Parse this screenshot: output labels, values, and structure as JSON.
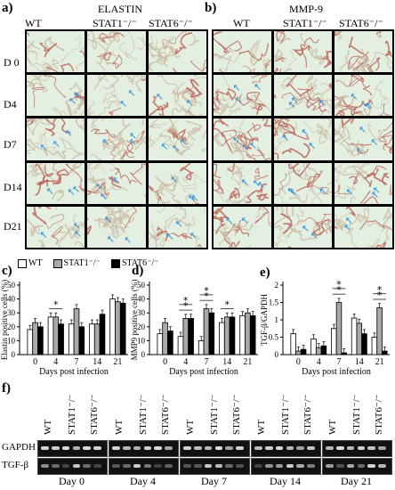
{
  "panel_a": {
    "letter": "a)",
    "title": "ELASTIN",
    "columns": [
      "WT",
      "STAT1⁻/⁻",
      "STAT6⁻/⁻"
    ]
  },
  "panel_b": {
    "letter": "b)",
    "title": "MMP-9",
    "columns": [
      "WT",
      "STAT1⁻/⁻",
      "STAT6⁻/⁻"
    ]
  },
  "rows": [
    "D 0",
    "D4",
    "D7",
    "D14",
    "D21"
  ],
  "legend": [
    "WT",
    "STAT1⁻/⁻",
    "STAT6⁻/⁻"
  ],
  "colors": {
    "wt": "#ffffff",
    "stat1": "#a9a9a9",
    "stat6": "#000000",
    "tissue": "#e3efe0",
    "arrow": "#2f8fd8"
  },
  "panel_c": {
    "letter": "c)"
  },
  "panel_d": {
    "letter": "d)"
  },
  "panel_e": {
    "letter": "e)"
  },
  "panel_f": {
    "letter": "f)"
  },
  "gel": {
    "rows": [
      "GAPDH",
      "TGF-β"
    ],
    "lane_labels": [
      "WT",
      "STAT1⁻/⁻",
      "STAT6⁻/⁻"
    ],
    "days": [
      "Day 0",
      "Day 4",
      "Day 7",
      "Day 14",
      "Day 21"
    ]
  },
  "chart_data": [
    {
      "type": "bar",
      "ylabel": "Elastin positive cells (%)",
      "xlabel": "Days post  infection",
      "categories": [
        "0",
        "4",
        "7",
        "14",
        "21"
      ],
      "ylim": [
        0,
        50
      ],
      "yticks": [
        0,
        10,
        20,
        30,
        40,
        50
      ],
      "series": [
        {
          "name": "WT",
          "values": [
            18,
            27,
            22,
            22,
            40
          ]
        },
        {
          "name": "STAT1⁻/⁻",
          "values": [
            23,
            27,
            33,
            22,
            38
          ]
        },
        {
          "name": "STAT6⁻/⁻",
          "values": [
            20,
            22,
            20,
            29,
            37
          ]
        }
      ],
      "stars": [
        1
      ]
    },
    {
      "type": "bar",
      "ylabel": "MMP9 positive cells (%)",
      "xlabel": "Days post  infection",
      "categories": [
        "0",
        "4",
        "7",
        "14",
        "21"
      ],
      "ylim": [
        0,
        50
      ],
      "yticks": [
        0,
        10,
        20,
        30,
        40,
        50
      ],
      "series": [
        {
          "name": "WT",
          "values": [
            15,
            13,
            10,
            23,
            28
          ]
        },
        {
          "name": "STAT1⁻/⁻",
          "values": [
            23,
            26,
            33,
            27,
            30
          ]
        },
        {
          "name": "STAT6⁻/⁻",
          "values": [
            17,
            26,
            30,
            27,
            28
          ]
        }
      ],
      "stars": [
        1,
        1,
        2,
        2,
        3
      ]
    },
    {
      "type": "bar",
      "ylabel": "TGF-β/GAPDH",
      "xlabel": "Days post  infection",
      "categories": [
        "0",
        "4",
        "7",
        "14",
        "21"
      ],
      "ylim": [
        0,
        2.0
      ],
      "yticks": [
        "0",
        "0.5",
        "1",
        "1.5",
        "2"
      ],
      "series": [
        {
          "name": "WT",
          "values": [
            0.6,
            0.45,
            0.75,
            1.05,
            0.5
          ]
        },
        {
          "name": "STAT1⁻/⁻",
          "values": [
            0.1,
            0.2,
            1.5,
            0.9,
            1.35
          ]
        },
        {
          "name": "STAT6⁻/⁻",
          "values": [
            0.15,
            0.25,
            0.05,
            0.6,
            0.1
          ]
        }
      ],
      "stars": [
        2,
        2,
        4,
        4
      ]
    }
  ]
}
